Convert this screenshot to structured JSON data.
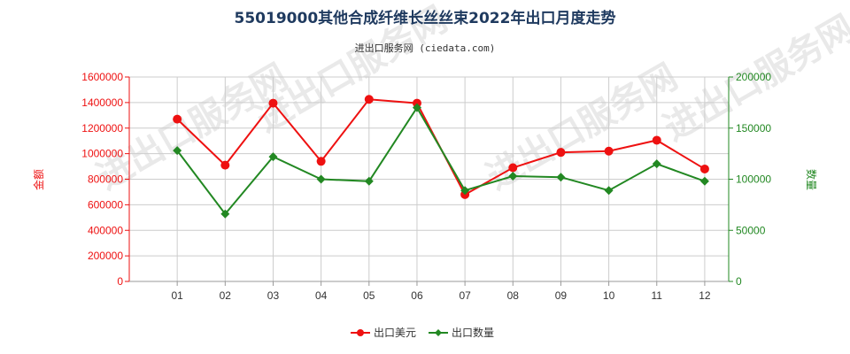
{
  "title": "55019000其他合成纤维长丝丝束2022年出口月度走势",
  "subtitle": "进出口服务网 (ciedata.com)",
  "watermark": "进出口服务网",
  "colors": {
    "amount": "#ee1111",
    "quantity": "#228822",
    "grid": "#cccccc",
    "title": "#1f3a5f"
  },
  "chart_data": {
    "type": "line",
    "categories": [
      "01",
      "02",
      "03",
      "04",
      "05",
      "06",
      "07",
      "08",
      "09",
      "10",
      "11",
      "12"
    ],
    "y_left_label": "金额",
    "y_right_label": "数量",
    "ylim_left": [
      0,
      1600000
    ],
    "ylim_right": [
      0,
      200000
    ],
    "y_left_ticks": [
      "0",
      "200000",
      "400000",
      "600000",
      "800000",
      "1000000",
      "1200000",
      "1400000",
      "1600000"
    ],
    "y_right_ticks": [
      "0",
      "50000",
      "100000",
      "150000",
      "200000"
    ],
    "grid": true,
    "legend_position": "bottom",
    "series": [
      {
        "name": "出口美元",
        "axis": "left",
        "color": "#ee1111",
        "marker": "circle",
        "values": [
          1270000,
          910000,
          1395000,
          940000,
          1425000,
          1395000,
          680000,
          890000,
          1010000,
          1020000,
          1105000,
          880000
        ]
      },
      {
        "name": "出口数量",
        "axis": "right",
        "color": "#228822",
        "marker": "diamond",
        "values": [
          128000,
          66000,
          122000,
          100000,
          98000,
          170000,
          89000,
          103000,
          102000,
          89000,
          115000,
          98000
        ]
      }
    ]
  }
}
